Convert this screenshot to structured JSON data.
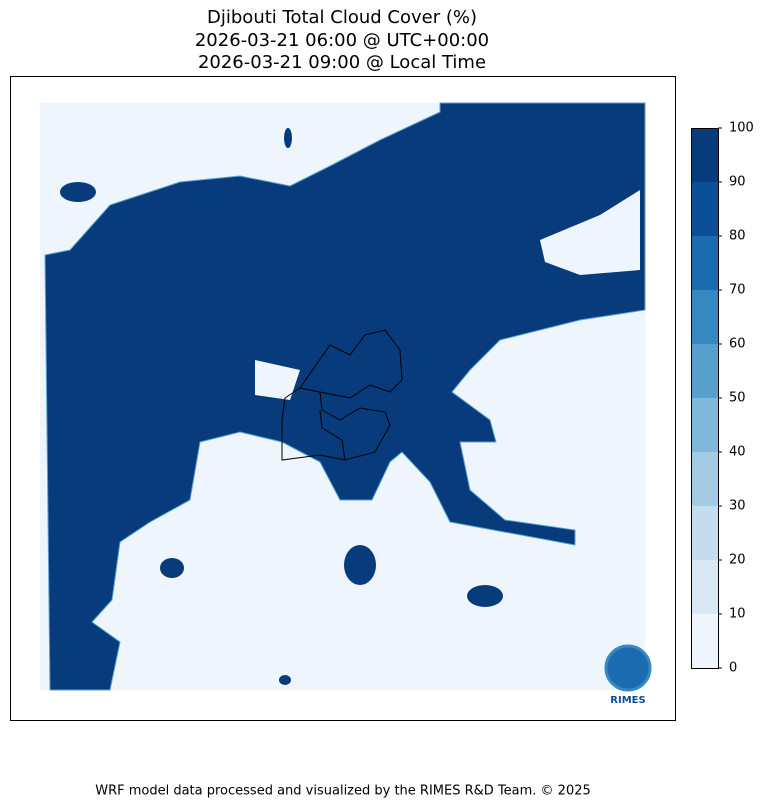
{
  "title": [
    "Djibouti Total Cloud Cover (%)",
    "2026-03-21 06:00 @ UTC+00:00",
    "2026-03-21 09:00 @ Local Time"
  ],
  "colorbar": {
    "ticks": [
      0,
      10,
      20,
      30,
      40,
      50,
      60,
      70,
      80,
      90,
      100
    ],
    "colors": [
      "#eef5fc",
      "#d9e8f5",
      "#c5dbef",
      "#a3cce3",
      "#7fb8da",
      "#57a0ce",
      "#3787c0",
      "#1c6aaf",
      "#0b4f96",
      "#083b7c"
    ]
  },
  "logo": "RIMES",
  "footer": "WRF model data processed and visualized by the RIMES R&D Team. © 2025"
}
